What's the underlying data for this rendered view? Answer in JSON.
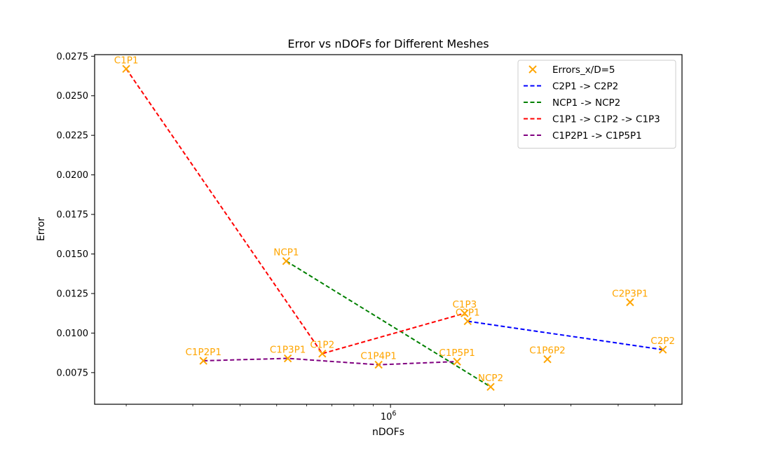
{
  "chart_data": {
    "type": "scatter",
    "title": "Error vs nDOFs for Different Meshes",
    "xlabel": "nDOFs",
    "ylabel": "Error",
    "xscale": "log",
    "xlim": [
      165000,
      5900000
    ],
    "ylim": [
      0.0055,
      0.0276
    ],
    "grid": false,
    "legend_placement": "top-right",
    "x_major_tick": {
      "value": 1000000,
      "base": "10",
      "exponent": "6"
    },
    "x_minor_ticks": [
      200000,
      300000,
      400000,
      500000,
      600000,
      700000,
      800000,
      900000,
      2000000,
      3000000,
      4000000,
      5000000
    ],
    "y_ticks": [
      {
        "value": 0.0075,
        "label": "0.0075"
      },
      {
        "value": 0.01,
        "label": "0.0100"
      },
      {
        "value": 0.0125,
        "label": "0.0125"
      },
      {
        "value": 0.015,
        "label": "0.0150"
      },
      {
        "value": 0.0175,
        "label": "0.0175"
      },
      {
        "value": 0.02,
        "label": "0.0200"
      },
      {
        "value": 0.0225,
        "label": "0.0225"
      },
      {
        "value": 0.025,
        "label": "0.0250"
      },
      {
        "value": 0.0275,
        "label": "0.0275"
      }
    ],
    "points_series": {
      "name": "Errors_x/D=5",
      "color": "#FFA500",
      "points": [
        {
          "label": "C1P1",
          "x": 200000,
          "y": 0.0267
        },
        {
          "label": "C1P2P1",
          "x": 320000,
          "y": 0.00825
        },
        {
          "label": "NCP1",
          "x": 530000,
          "y": 0.01455
        },
        {
          "label": "C1P3P1",
          "x": 535000,
          "y": 0.0084
        },
        {
          "label": "C1P2",
          "x": 660000,
          "y": 0.0087
        },
        {
          "label": "C1P4P1",
          "x": 930000,
          "y": 0.008
        },
        {
          "label": "C1P5P1",
          "x": 1500000,
          "y": 0.0082
        },
        {
          "label": "C1P3",
          "x": 1570000,
          "y": 0.01125
        },
        {
          "label": "C2P1",
          "x": 1600000,
          "y": 0.01075
        },
        {
          "label": "NCP2",
          "x": 1840000,
          "y": 0.0066
        },
        {
          "label": "C1P6P2",
          "x": 2600000,
          "y": 0.00835
        },
        {
          "label": "C2P3P1",
          "x": 4300000,
          "y": 0.01195
        },
        {
          "label": "C2P2",
          "x": 5250000,
          "y": 0.00895
        }
      ]
    },
    "line_series": [
      {
        "name": "C2P1 -> C2P2",
        "color": "#0000FF",
        "points": [
          "C2P1",
          "C2P2"
        ]
      },
      {
        "name": "NCP1 -> NCP2",
        "color": "#008000",
        "points": [
          "NCP1",
          "NCP2"
        ]
      },
      {
        "name": "C1P1 -> C1P2 -> C1P3",
        "color": "#FF0000",
        "points": [
          "C1P1",
          "C1P2",
          "C1P3"
        ]
      },
      {
        "name": "C1P2P1 -> C1P5P1",
        "color": "#800080",
        "points": [
          "C1P2P1",
          "C1P3P1",
          "C1P4P1",
          "C1P5P1"
        ]
      }
    ]
  }
}
